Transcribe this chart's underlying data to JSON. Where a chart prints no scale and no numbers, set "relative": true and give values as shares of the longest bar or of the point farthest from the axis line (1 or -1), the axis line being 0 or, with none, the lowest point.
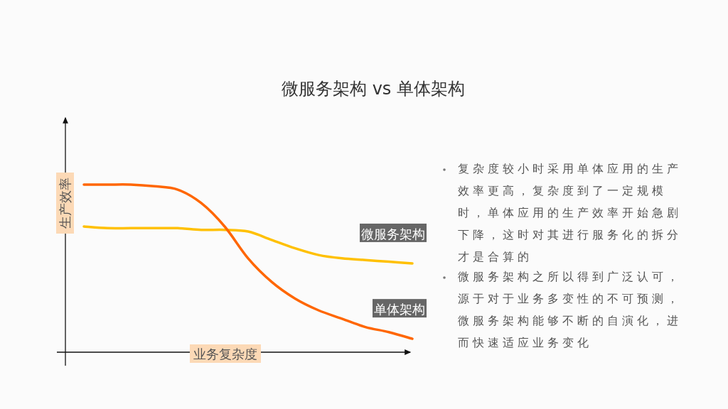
{
  "chart_data": {
    "type": "line",
    "title": "微服务架构 vs 单体架构",
    "xlabel": "业务复杂度",
    "ylabel": "生产效率",
    "relative": true,
    "categories": [
      null,
      null,
      null,
      null,
      null,
      null,
      null,
      null,
      null,
      null,
      null,
      null,
      null,
      null,
      null
    ],
    "series": [
      {
        "name": "微服务架构",
        "color": "#ffc000",
        "values": [
          0.75,
          0.74,
          0.74,
          0.74,
          0.74,
          0.73,
          0.73,
          0.72,
          0.67,
          0.62,
          0.58,
          0.56,
          0.55,
          0.54,
          0.53
        ]
      },
      {
        "name": "单体架构",
        "color": "#ff6600",
        "values": [
          1.0,
          1.0,
          1.0,
          0.99,
          0.97,
          0.89,
          0.75,
          0.56,
          0.42,
          0.32,
          0.25,
          0.2,
          0.15,
          0.12,
          0.08
        ]
      }
    ],
    "annotations": [
      "复杂度较小时采用单体应用的生产效率更高，复杂度到了一定规模时，单体应用的生产效率开始急剧下降，这时对其进行服务化的拆分才是合算的",
      "微服务架构之所以得到广泛认可，源于对于业务多变性的不可预测，微服务架构能够不断的自演化，进而快速适应业务变化"
    ],
    "legend": false,
    "grid": false,
    "marker": "none",
    "line_style": "solid"
  }
}
